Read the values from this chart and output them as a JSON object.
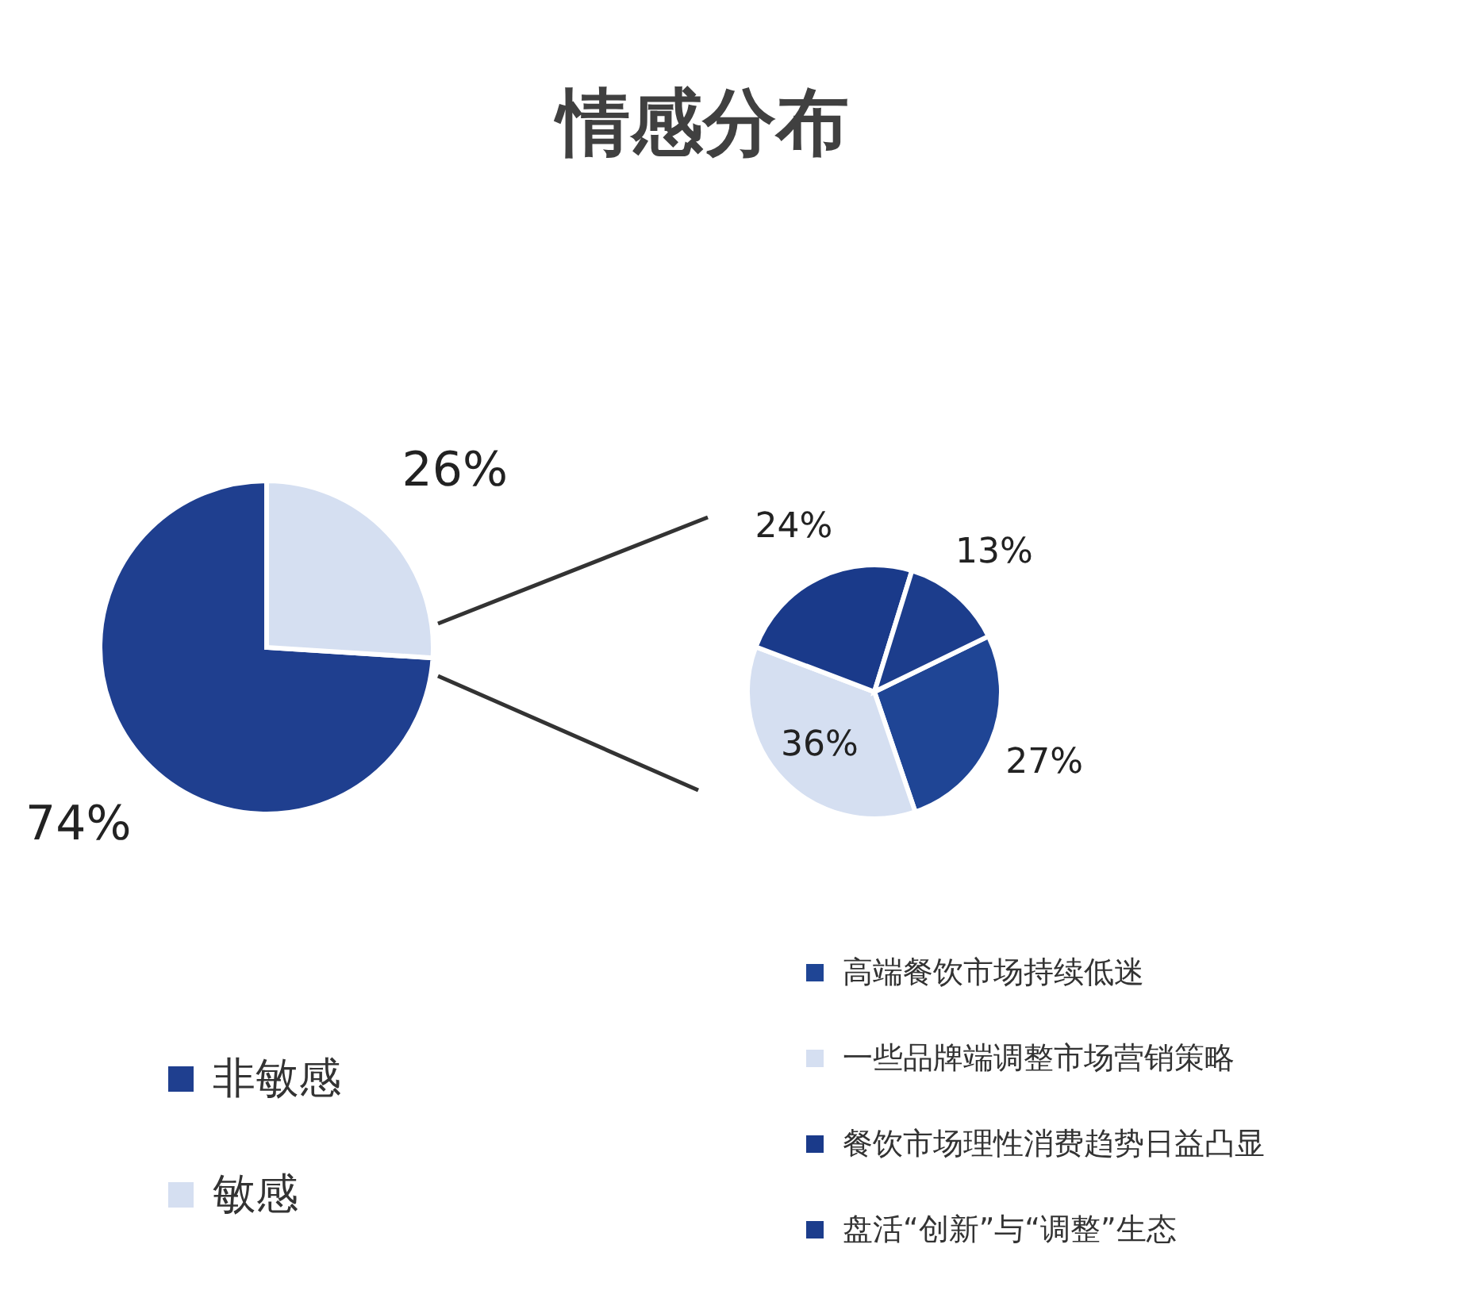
{
  "chart_data": [
    {
      "type": "pie",
      "title": "情感分布",
      "categories": [
        "非敏感",
        "敏感"
      ],
      "values": [
        74,
        26
      ],
      "colors": [
        "#1f3f8f",
        "#d5dff1"
      ],
      "value_labels": [
        "74%",
        "26%"
      ],
      "legend": "bottom left"
    },
    {
      "type": "pie",
      "categories": [
        "高端餐饮市场持续低迷",
        "一些品牌端调整市场营销策略",
        "餐饮市场理性消费趋势日益凸显",
        "盘活“创新”与“调整”生态"
      ],
      "values": [
        27,
        36,
        24,
        13
      ],
      "colors": [
        "#1f4595",
        "#d5dff1",
        "#1a3a8a",
        "#1c3d8c"
      ],
      "value_labels": [
        "27%",
        "36%",
        "24%",
        "13%"
      ],
      "legend": "bottom"
    }
  ]
}
